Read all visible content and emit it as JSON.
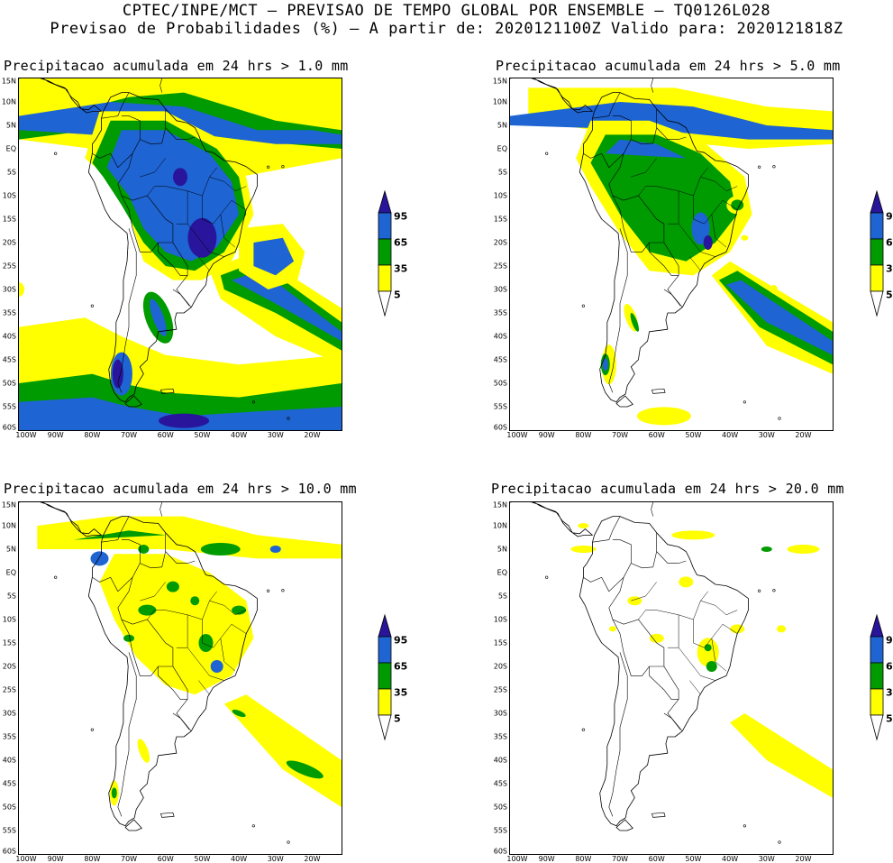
{
  "header": {
    "line1": "CPTEC/INPE/MCT — PREVISAO DE TEMPO GLOBAL POR ENSEMBLE — TQ0126L028",
    "line2": "Previsao de Probabilidades (%) —  A partir de: 2020121100Z  Valido para: 2020121818Z"
  },
  "colors": {
    "p5": "#ffff00",
    "p35": "#009b00",
    "p65": "#1e64d2",
    "p95": "#28159b",
    "coast": "#000000"
  },
  "axes": {
    "lat_labels": [
      "15N",
      "10N",
      "5N",
      "EQ",
      "5S",
      "10S",
      "15S",
      "20S",
      "25S",
      "30S",
      "35S",
      "40S",
      "45S",
      "50S",
      "55S",
      "60S"
    ],
    "lon_labels": [
      "100W",
      "90W",
      "80W",
      "70W",
      "60W",
      "50W",
      "40W",
      "30W",
      "20W"
    ]
  },
  "legend": {
    "ticks": [
      "95",
      "65",
      "35",
      "5"
    ]
  },
  "panels": [
    {
      "title": "Precipitacao acumulada em 24 hrs > 1.0 mm"
    },
    {
      "title": "Precipitacao acumulada em 24 hrs > 5.0 mm"
    },
    {
      "title": "Precipitacao acumulada em 24 hrs > 10.0 mm"
    },
    {
      "title": "Precipitacao acumulada em 24 hrs > 20.0 mm"
    }
  ]
}
